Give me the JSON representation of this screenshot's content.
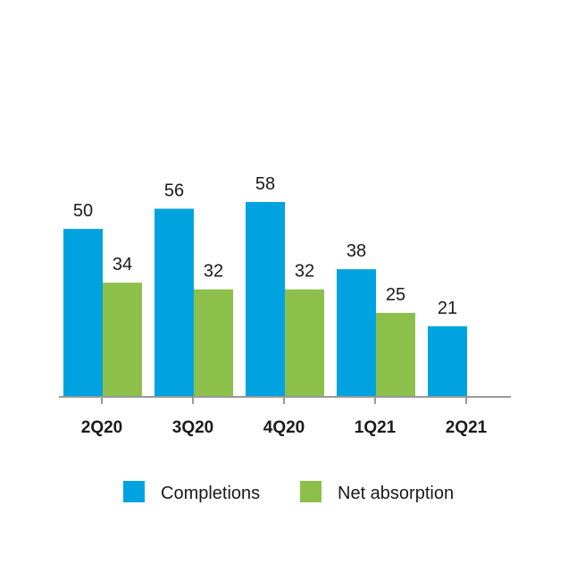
{
  "chart_data": {
    "type": "bar",
    "title": "",
    "xlabel": "",
    "ylabel": "",
    "categories": [
      "2Q20",
      "3Q20",
      "4Q20",
      "1Q21",
      "2Q21"
    ],
    "series": [
      {
        "name": "Completions",
        "color": "#00a3e0",
        "values": [
          50,
          56,
          58,
          38,
          21
        ]
      },
      {
        "name": "Net absorption",
        "color": "#8cc04b",
        "values": [
          34,
          32,
          32,
          25,
          null
        ]
      }
    ],
    "ylim": [
      0,
      75
    ],
    "grid": false,
    "legend_position": "bottom",
    "axis_color": "#999999"
  }
}
